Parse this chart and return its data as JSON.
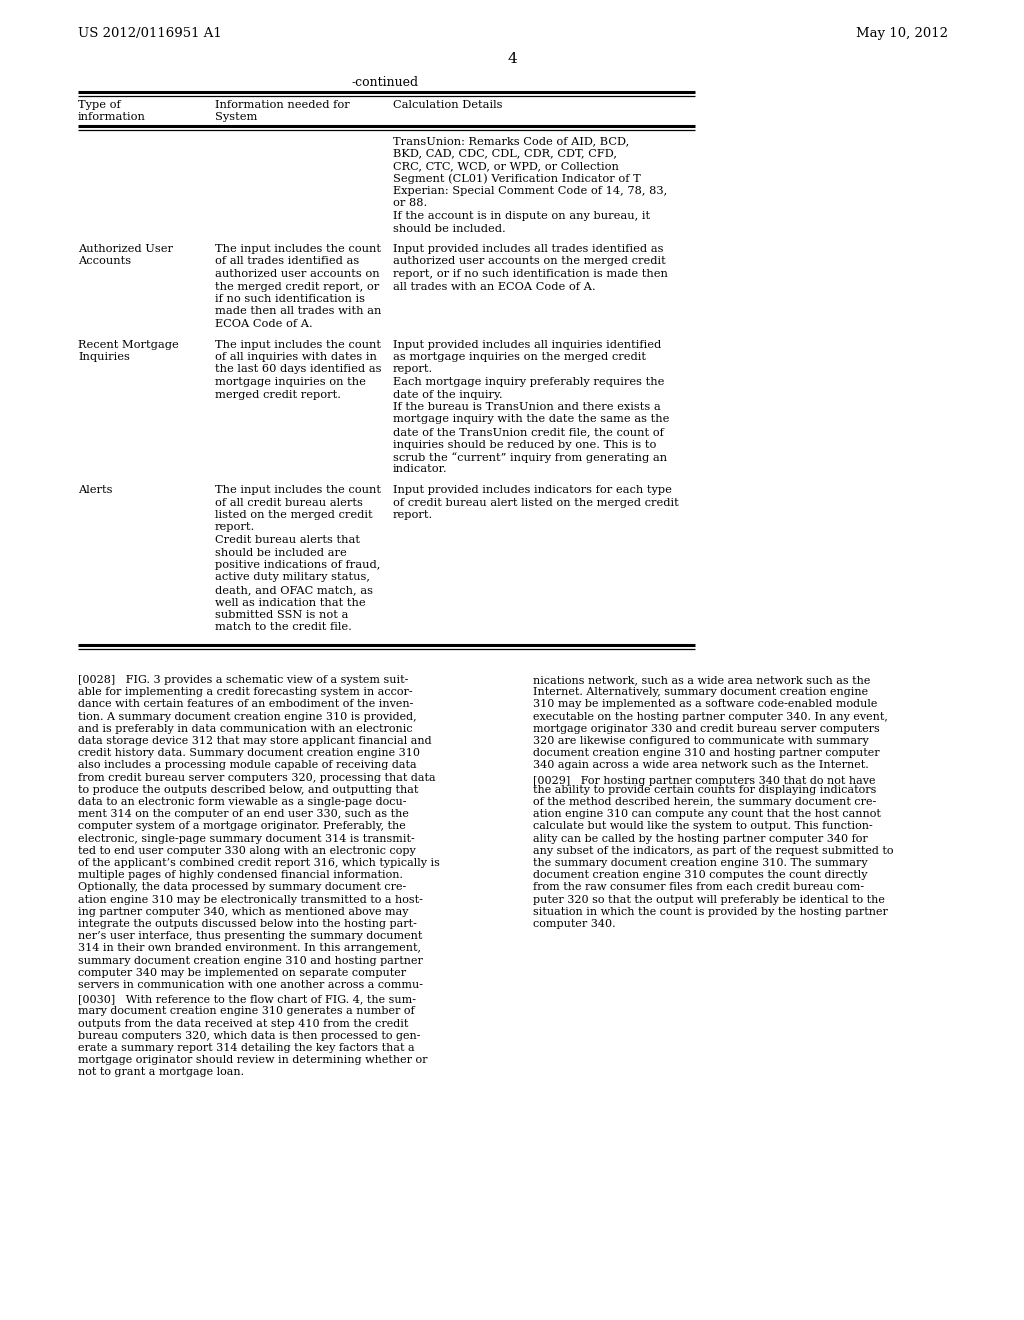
{
  "page_number": "4",
  "header_left": "US 2012/0116951 A1",
  "header_right": "May 10, 2012",
  "bg_color": "#ffffff",
  "table_continued_label": "-continued",
  "col1_header_line1": "Type of",
  "col1_header_line2": "information",
  "col2_header_line1": "Information needed for",
  "col2_header_line2": "System",
  "col3_header": "Calculation Details",
  "row0_col3_lines": [
    "TransUnion: Remarks Code of AID, BCD,",
    "BKD, CAD, CDC, CDL, CDR, CDT, CFD,",
    "CRC, CTC, WCD, or WPD, or Collection",
    "Segment (CL01) Verification Indicator of T",
    "Experian: Special Comment Code of 14, 78, 83,",
    "or 88.",
    "If the account is in dispute on any bureau, it",
    "should be included."
  ],
  "row1_col1_lines": [
    "Authorized User",
    "Accounts"
  ],
  "row1_col2_lines": [
    "The input includes the count",
    "of all trades identified as",
    "authorized user accounts on",
    "the merged credit report, or",
    "if no such identification is",
    "made then all trades with an",
    "ECOA Code of A."
  ],
  "row1_col3_lines": [
    "Input provided includes all trades identified as",
    "authorized user accounts on the merged credit",
    "report, or if no such identification is made then",
    "all trades with an ECOA Code of A."
  ],
  "row2_col1_lines": [
    "Recent Mortgage",
    "Inquiries"
  ],
  "row2_col2_lines": [
    "The input includes the count",
    "of all inquiries with dates in",
    "the last 60 days identified as",
    "mortgage inquiries on the",
    "merged credit report."
  ],
  "row2_col3_lines": [
    "Input provided includes all inquiries identified",
    "as mortgage inquiries on the merged credit",
    "report.",
    "Each mortgage inquiry preferably requires the",
    "date of the inquiry.",
    "If the bureau is TransUnion and there exists a",
    "mortgage inquiry with the date the same as the",
    "date of the TransUnion credit file, the count of",
    "inquiries should be reduced by one. This is to",
    "scrub the “current” inquiry from generating an",
    "indicator."
  ],
  "row3_col1_lines": [
    "Alerts"
  ],
  "row3_col2_lines": [
    "The input includes the count",
    "of all credit bureau alerts",
    "listed on the merged credit",
    "report.",
    "Credit bureau alerts that",
    "should be included are",
    "positive indications of fraud,",
    "active duty military status,",
    "death, and OFAC match, as",
    "well as indication that the",
    "submitted SSN is not a",
    "match to the credit file."
  ],
  "row3_col3_lines": [
    "Input provided includes indicators for each type",
    "of credit bureau alert listed on the merged credit",
    "report."
  ],
  "body_left_col_lines": [
    "[0028]   FIG. 3 provides a schematic view of a system suit-",
    "able for implementing a credit forecasting system in accor-",
    "dance with certain features of an embodiment of the inven-",
    "tion. A summary document creation engine 310 is provided,",
    "and is preferably in data communication with an electronic",
    "data storage device 312 that may store applicant financial and",
    "credit history data. Summary document creation engine 310",
    "also includes a processing module capable of receiving data",
    "from credit bureau server computers 320, processing that data",
    "to produce the outputs described below, and outputting that",
    "data to an electronic form viewable as a single-page docu-",
    "ment 314 on the computer of an end user 330, such as the",
    "computer system of a mortgage originator. Preferably, the",
    "electronic, single-page summary document 314 is transmit-",
    "ted to end user computer 330 along with an electronic copy",
    "of the applicant’s combined credit report 316, which typically is",
    "multiple pages of highly condensed financial information.",
    "Optionally, the data processed by summary document cre-",
    "ation engine 310 may be electronically transmitted to a host-",
    "ing partner computer 340, which as mentioned above may",
    "integrate the outputs discussed below into the hosting part-",
    "ner’s user interface, thus presenting the summary document",
    "314 in their own branded environment. In this arrangement,",
    "summary document creation engine 310 and hosting partner",
    "computer 340 may be implemented on separate computer",
    "servers in communication with one another across a commu-"
  ],
  "body_right_col_lines": [
    "nications network, such as a wide area network such as the",
    "Internet. Alternatively, summary document creation engine",
    "310 may be implemented as a software code-enabled module",
    "executable on the hosting partner computer 340. In any event,",
    "mortgage originator 330 and credit bureau server computers",
    "320 are likewise configured to communicate with summary",
    "document creation engine 310 and hosting partner computer",
    "340 again across a wide area network such as the Internet.",
    "[0029]   For hosting partner computers 340 that do not have",
    "the ability to provide certain counts for displaying indicators",
    "of the method described herein, the summary document cre-",
    "ation engine 310 can compute any count that the host cannot",
    "calculate but would like the system to output. This function-",
    "ality can be called by the hosting partner computer 340 for",
    "any subset of the indicators, as part of the request submitted to",
    "the summary document creation engine 310. The summary",
    "document creation engine 310 computes the count directly",
    "from the raw consumer files from each credit bureau com-",
    "puter 320 so that the output will preferably be identical to the",
    "situation in which the count is provided by the hosting partner",
    "computer 340."
  ],
  "body_left_col2_lines": [
    "[0030]   With reference to the flow chart of FIG. 4, the sum-",
    "mary document creation engine 310 generates a number of",
    "outputs from the data received at step 410 from the credit",
    "bureau computers 320, which data is then processed to gen-",
    "erate a summary report 314 detailing the key factors that a",
    "mortgage originator should review in determining whether or",
    "not to grant a mortgage loan."
  ]
}
